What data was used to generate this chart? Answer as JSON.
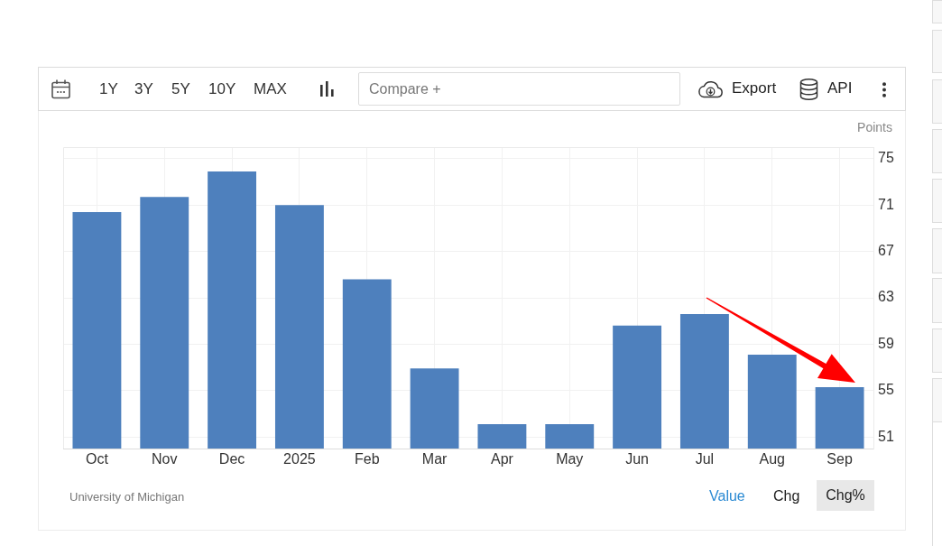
{
  "chart_data": {
    "type": "bar",
    "categories": [
      "Oct",
      "Nov",
      "Dec",
      "2025",
      "Feb",
      "Mar",
      "Apr",
      "May",
      "Jun",
      "Jul",
      "Aug",
      "Sep"
    ],
    "values": [
      70.4,
      71.7,
      73.9,
      71.0,
      64.6,
      56.9,
      52.1,
      52.1,
      60.6,
      61.6,
      58.1,
      55.3
    ],
    "color": "#4e80bd",
    "ylabel": "Points",
    "ylim": [
      50,
      76
    ],
    "yticks": [
      51,
      55,
      59,
      63,
      67,
      71,
      75
    ],
    "grid": true,
    "annotations": [
      "1Y",
      "3Y",
      "5Y",
      "10Y",
      "MAX",
      "Compare +",
      "Export",
      "API",
      "University of Michigan",
      "Value",
      "Chg",
      "Chg%"
    ]
  }
}
